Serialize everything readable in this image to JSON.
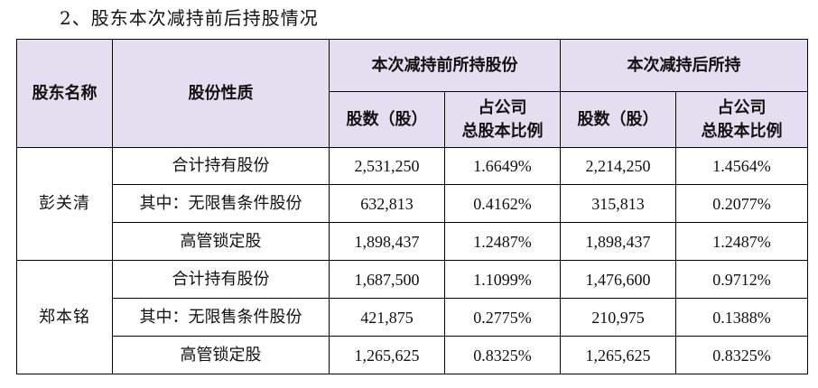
{
  "section_title": "2、股东本次减持前后持股情况",
  "headers": {
    "shareholder_name": "股东名称",
    "share_nature": "股份性质",
    "before_group": "本次减持前所持股份",
    "after_group": "本次减持后所持",
    "shares_col": "股数（股）",
    "ratio_col_line1": "占公司",
    "ratio_col_line2": "总股本比例"
  },
  "shareholders": [
    {
      "name": "彭关清",
      "rows": [
        {
          "nature": "合计持有股份",
          "before_shares": "2,531,250",
          "before_ratio": "1.6649%",
          "after_shares": "2,214,250",
          "after_ratio": "1.4564%"
        },
        {
          "nature": "其中：无限售条件股份",
          "before_shares": "632,813",
          "before_ratio": "0.4162%",
          "after_shares": "315,813",
          "after_ratio": "0.2077%"
        },
        {
          "nature": "高管锁定股",
          "before_shares": "1,898,437",
          "before_ratio": "1.2487%",
          "after_shares": "1,898,437",
          "after_ratio": "1.2487%"
        }
      ]
    },
    {
      "name": "郑本铭",
      "rows": [
        {
          "nature": "合计持有股份",
          "before_shares": "1,687,500",
          "before_ratio": "1.1099%",
          "after_shares": "1,476,600",
          "after_ratio": "0.9712%"
        },
        {
          "nature": "其中：无限售条件股份",
          "before_shares": "421,875",
          "before_ratio": "0.2775%",
          "after_shares": "210,975",
          "after_ratio": "0.1388%"
        },
        {
          "nature": "高管锁定股",
          "before_shares": "1,265,625",
          "before_ratio": "0.8325%",
          "after_shares": "1,265,625",
          "after_ratio": "0.8325%"
        }
      ]
    }
  ]
}
